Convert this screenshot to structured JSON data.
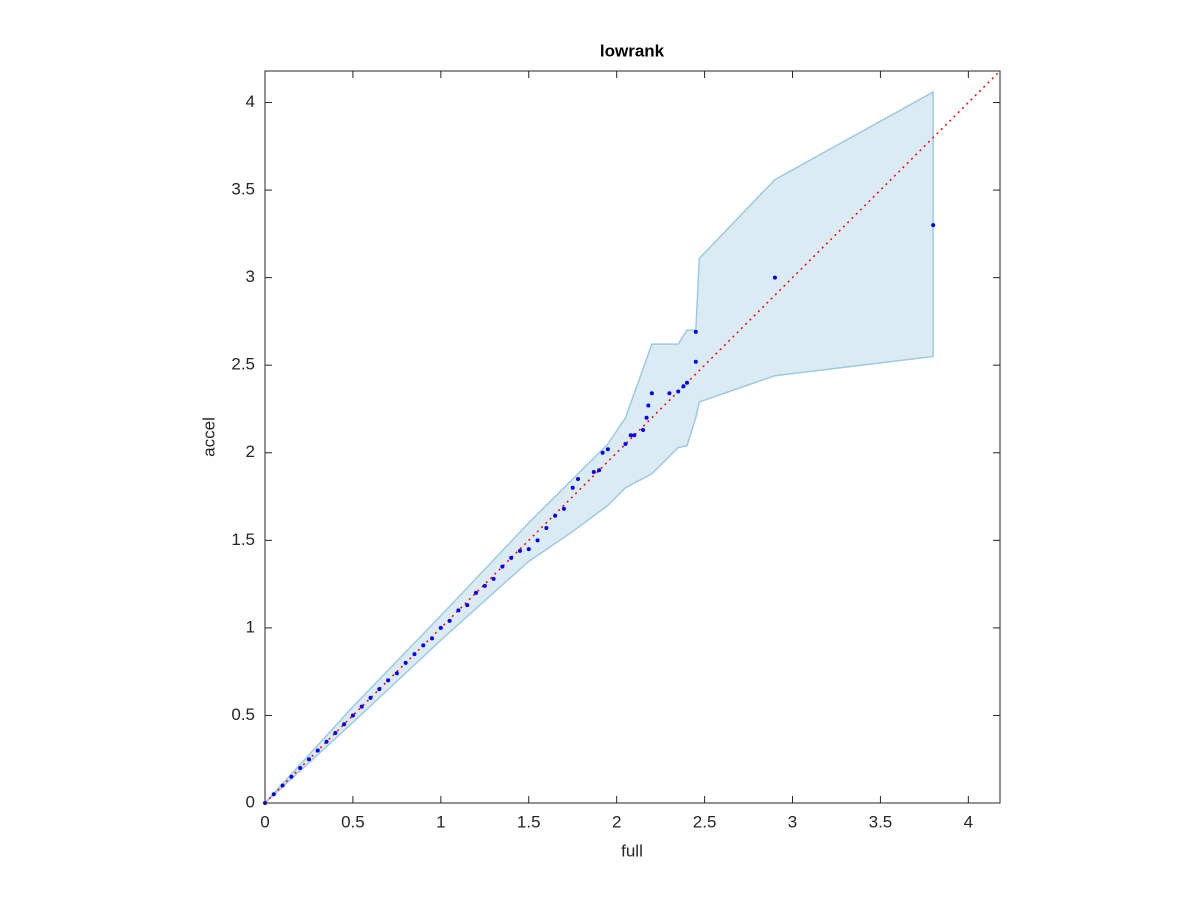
{
  "chart_data": {
    "type": "scatter",
    "title": "lowrank",
    "xlabel": "full",
    "ylabel": "accel",
    "xlim": [
      0,
      4.18
    ],
    "ylim": [
      0,
      4.18
    ],
    "xticks": [
      0,
      0.5,
      1,
      1.5,
      2,
      2.5,
      3,
      3.5,
      4
    ],
    "yticks": [
      0,
      0.5,
      1,
      1.5,
      2,
      2.5,
      3,
      3.5,
      4
    ],
    "band": {
      "color": "#9ecae1",
      "x": [
        0,
        0.5,
        1,
        1.5,
        1.75,
        1.95,
        2.05,
        2.2,
        2.35,
        2.4,
        2.45,
        2.47,
        2.9,
        3.8
      ],
      "upper": [
        0,
        0.55,
        1.07,
        1.6,
        1.85,
        2.05,
        2.2,
        2.62,
        2.62,
        2.7,
        2.7,
        3.11,
        3.56,
        4.06
      ],
      "lower": [
        0,
        0.46,
        0.93,
        1.38,
        1.55,
        1.7,
        1.8,
        1.88,
        2.03,
        2.04,
        2.2,
        2.29,
        2.44,
        2.55
      ]
    },
    "reference_line": {
      "color": "#ff0000",
      "x": [
        0,
        4.18
      ],
      "y": [
        0,
        4.18
      ]
    },
    "points": {
      "color": "#0000ff",
      "x": [
        0,
        0.05,
        0.1,
        0.15,
        0.2,
        0.25,
        0.3,
        0.35,
        0.4,
        0.45,
        0.5,
        0.55,
        0.6,
        0.65,
        0.7,
        0.75,
        0.8,
        0.85,
        0.9,
        0.95,
        1.0,
        1.05,
        1.1,
        1.15,
        1.2,
        1.25,
        1.3,
        1.35,
        1.4,
        1.45,
        1.5,
        1.55,
        1.6,
        1.65,
        1.7,
        1.75,
        1.78,
        1.87,
        1.9,
        1.92,
        1.95,
        2.05,
        2.08,
        2.1,
        2.15,
        2.17,
        2.18,
        2.2,
        2.3,
        2.35,
        2.38,
        2.4,
        2.45,
        2.45,
        2.9,
        3.8
      ],
      "y": [
        0,
        0.05,
        0.1,
        0.15,
        0.2,
        0.25,
        0.3,
        0.35,
        0.4,
        0.45,
        0.5,
        0.55,
        0.6,
        0.65,
        0.7,
        0.74,
        0.8,
        0.85,
        0.9,
        0.94,
        1.0,
        1.04,
        1.1,
        1.13,
        1.2,
        1.24,
        1.28,
        1.35,
        1.4,
        1.44,
        1.45,
        1.5,
        1.57,
        1.64,
        1.68,
        1.8,
        1.85,
        1.89,
        1.9,
        2.0,
        2.02,
        2.05,
        2.1,
        2.1,
        2.13,
        2.2,
        2.27,
        2.34,
        2.34,
        2.35,
        2.38,
        2.4,
        2.52,
        2.69,
        3.0,
        3.3
      ]
    }
  }
}
